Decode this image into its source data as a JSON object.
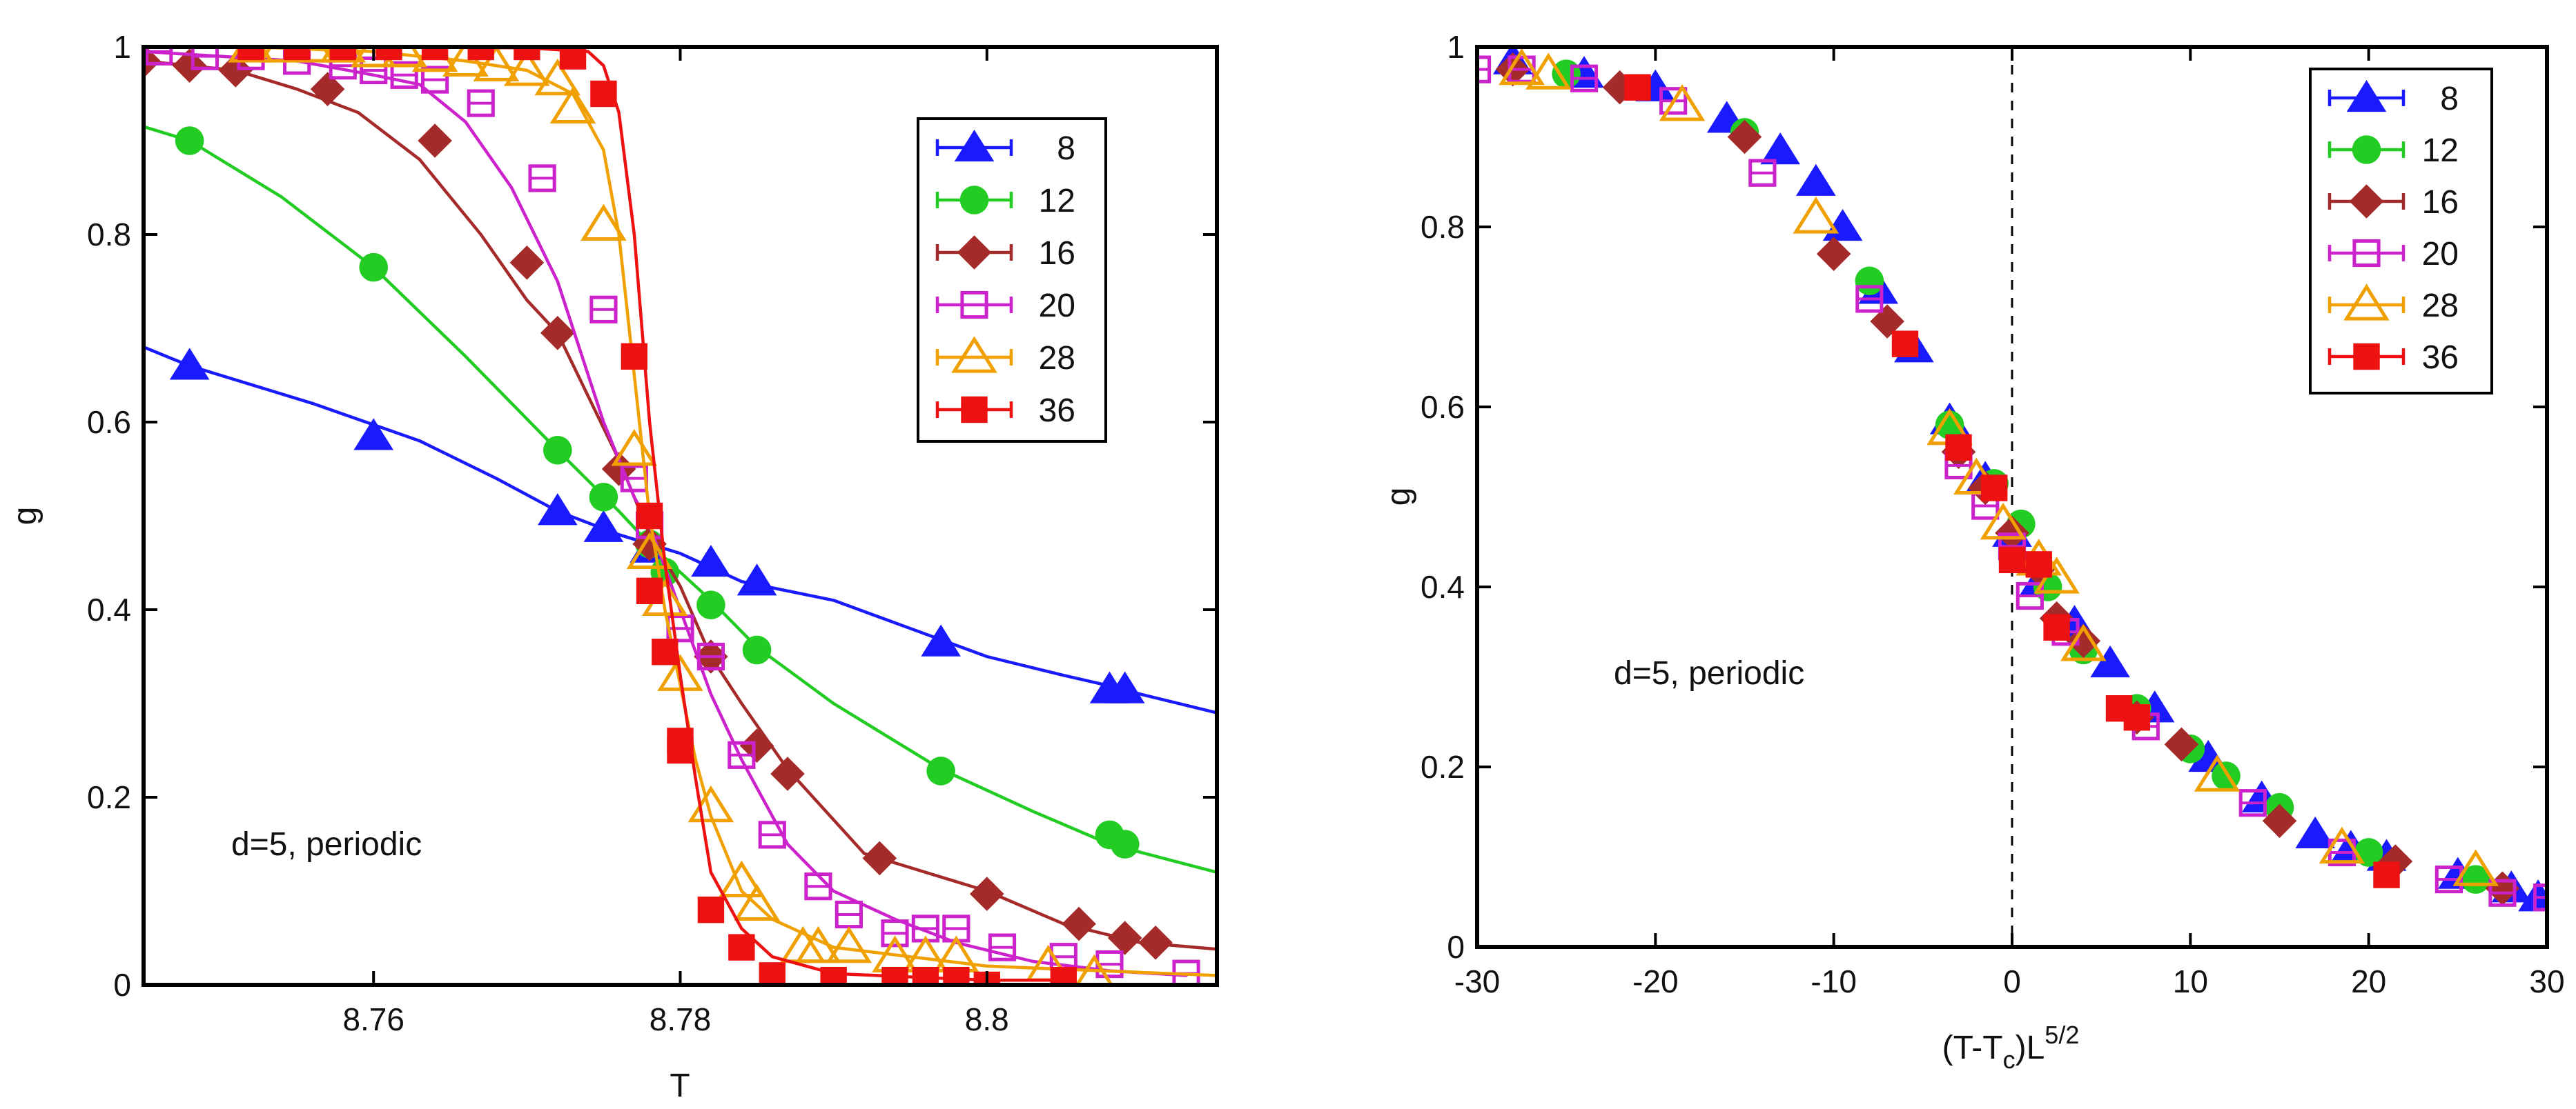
{
  "chart_data": [
    {
      "type": "line",
      "title": "",
      "xlabel": "T",
      "ylabel": "g",
      "xlim": [
        8.745,
        8.815
      ],
      "ylim": [
        0,
        1
      ],
      "xticks": [
        "8.76",
        "8.78",
        "8.8"
      ],
      "xtick_values": [
        8.76,
        8.78,
        8.8
      ],
      "yticks": [
        "0",
        "0.2",
        "0.4",
        "0.6",
        "0.8",
        "1"
      ],
      "ytick_values": [
        0,
        0.2,
        0.4,
        0.6,
        0.8,
        1
      ],
      "legend_position": "top-right",
      "annotation": "d=5, periodic",
      "grid": false,
      "series": [
        {
          "name": "8",
          "marker": "triangle",
          "color": "#1a1aff",
          "x": [
            8.745,
            8.748,
            8.756,
            8.763,
            8.768,
            8.772,
            8.776,
            8.78,
            8.784,
            8.79,
            8.795,
            8.8,
            8.805,
            8.809,
            8.81,
            8.815
          ],
          "y": [
            0.68,
            0.66,
            0.62,
            0.58,
            0.54,
            0.505,
            0.48,
            0.46,
            0.43,
            0.41,
            0.38,
            0.35,
            0.33,
            0.315,
            0.31,
            0.29
          ],
          "marker_x": [
            8.748,
            8.76,
            8.772,
            8.775,
            8.778,
            8.782,
            8.785,
            8.797,
            8.808,
            8.809
          ],
          "marker_y": [
            0.66,
            0.585,
            0.505,
            0.487,
            0.465,
            0.45,
            0.43,
            0.365,
            0.315,
            0.315
          ]
        },
        {
          "name": "12",
          "marker": "circle",
          "color": "#22cc22",
          "x": [
            8.745,
            8.748,
            8.754,
            8.76,
            8.766,
            8.772,
            8.776,
            8.778,
            8.78,
            8.782,
            8.785,
            8.79,
            8.797,
            8.803,
            8.808,
            8.815
          ],
          "y": [
            0.915,
            0.9,
            0.84,
            0.765,
            0.67,
            0.57,
            0.505,
            0.47,
            0.44,
            0.41,
            0.36,
            0.3,
            0.23,
            0.185,
            0.15,
            0.12
          ],
          "marker_x": [
            8.748,
            8.76,
            8.772,
            8.775,
            8.778,
            8.779,
            8.782,
            8.785,
            8.797,
            8.808,
            8.809
          ],
          "marker_y": [
            0.9,
            0.765,
            0.57,
            0.52,
            0.47,
            0.44,
            0.405,
            0.357,
            0.228,
            0.16,
            0.15
          ]
        },
        {
          "name": "16",
          "marker": "diamond",
          "color": "#a52a2a",
          "x": [
            8.745,
            8.748,
            8.751,
            8.755,
            8.759,
            8.763,
            8.767,
            8.77,
            8.772,
            8.776,
            8.778,
            8.78,
            8.782,
            8.784,
            8.787,
            8.792,
            8.8,
            8.805,
            8.81,
            8.815
          ],
          "y": [
            0.985,
            0.98,
            0.975,
            0.955,
            0.93,
            0.88,
            0.8,
            0.73,
            0.695,
            0.56,
            0.48,
            0.425,
            0.35,
            0.3,
            0.23,
            0.14,
            0.1,
            0.065,
            0.045,
            0.038
          ],
          "marker_x": [
            8.745,
            8.748,
            8.751,
            8.757,
            8.764,
            8.77,
            8.772,
            8.776,
            8.778,
            8.782,
            8.785,
            8.787,
            8.793,
            8.8,
            8.806,
            8.809,
            8.811
          ],
          "marker_y": [
            0.985,
            0.98,
            0.975,
            0.955,
            0.9,
            0.77,
            0.695,
            0.55,
            0.47,
            0.35,
            0.255,
            0.225,
            0.135,
            0.097,
            0.065,
            0.05,
            0.045
          ]
        },
        {
          "name": "20",
          "marker": "open-square",
          "color": "#cc22cc",
          "x": [
            8.745,
            8.75,
            8.755,
            8.76,
            8.763,
            8.766,
            8.769,
            8.772,
            8.775,
            8.777,
            8.778,
            8.78,
            8.782,
            8.784,
            8.787,
            8.79,
            8.794,
            8.798,
            8.803,
            8.808,
            8.813
          ],
          "y": [
            0.995,
            0.99,
            0.985,
            0.97,
            0.96,
            0.92,
            0.85,
            0.75,
            0.6,
            0.52,
            0.49,
            0.4,
            0.31,
            0.24,
            0.15,
            0.1,
            0.07,
            0.045,
            0.025,
            0.015,
            0.01
          ],
          "marker_x": [
            8.746,
            8.749,
            8.752,
            8.755,
            8.758,
            8.76,
            8.762,
            8.764,
            8.767,
            8.771,
            8.775,
            8.777,
            8.778,
            8.78,
            8.782,
            8.784,
            8.786,
            8.789,
            8.791,
            8.794,
            8.796,
            8.798,
            8.801,
            8.805,
            8.808,
            8.813
          ],
          "marker_y": [
            0.995,
            0.99,
            0.99,
            0.985,
            0.98,
            0.975,
            0.97,
            0.965,
            0.94,
            0.86,
            0.72,
            0.54,
            0.49,
            0.38,
            0.35,
            0.245,
            0.16,
            0.105,
            0.075,
            0.055,
            0.06,
            0.06,
            0.04,
            0.03,
            0.022,
            0.012
          ]
        },
        {
          "name": "28",
          "marker": "open-triangle",
          "color": "#f0a000",
          "x": [
            8.752,
            8.76,
            8.766,
            8.77,
            8.773,
            8.775,
            8.776,
            8.777,
            8.778,
            8.779,
            8.78,
            8.781,
            8.782,
            8.784,
            8.786,
            8.79,
            8.8,
            8.815
          ],
          "y": [
            1.0,
            0.995,
            0.985,
            0.975,
            0.95,
            0.89,
            0.8,
            0.65,
            0.5,
            0.4,
            0.32,
            0.24,
            0.18,
            0.1,
            0.07,
            0.04,
            0.02,
            0.01
          ],
          "marker_x": [
            8.752,
            8.754,
            8.756,
            8.758,
            8.76,
            8.762,
            8.764,
            8.766,
            8.768,
            8.77,
            8.772,
            8.773,
            8.775,
            8.777,
            8.778,
            8.779,
            8.78,
            8.782,
            8.784,
            8.785,
            8.788,
            8.789,
            8.791,
            8.794,
            8.796,
            8.798,
            8.804,
            8.807
          ],
          "marker_y": [
            1.0,
            1.0,
            1.0,
            1.0,
            0.995,
            0.995,
            0.99,
            0.985,
            0.98,
            0.975,
            0.965,
            0.935,
            0.81,
            0.57,
            0.46,
            0.41,
            0.33,
            0.19,
            0.11,
            0.085,
            0.04,
            0.04,
            0.04,
            0.03,
            0.03,
            0.03,
            0.02,
            0.01
          ]
        },
        {
          "name": "36",
          "marker": "square",
          "color": "#ee1111",
          "x": [
            8.752,
            8.76,
            8.77,
            8.774,
            8.775,
            8.776,
            8.777,
            8.778,
            8.779,
            8.78,
            8.781,
            8.782,
            8.784,
            8.786,
            8.79,
            8.8,
            8.805
          ],
          "y": [
            1.0,
            1.0,
            0.999,
            0.995,
            0.98,
            0.93,
            0.8,
            0.6,
            0.45,
            0.33,
            0.22,
            0.12,
            0.06,
            0.03,
            0.012,
            0.005,
            0.005
          ],
          "marker_x": [
            8.752,
            8.755,
            8.758,
            8.761,
            8.764,
            8.767,
            8.77,
            8.773,
            8.775,
            8.777,
            8.778,
            8.778,
            8.779,
            8.78,
            8.78,
            8.782,
            8.784,
            8.786,
            8.79,
            8.794,
            8.796,
            8.798,
            8.8,
            8.805
          ],
          "marker_y": [
            1.0,
            1.0,
            1.0,
            1.0,
            1.0,
            1.0,
            1.0,
            0.99,
            0.95,
            0.67,
            0.5,
            0.42,
            0.355,
            0.26,
            0.25,
            0.08,
            0.04,
            0.01,
            0.005,
            0.005,
            0.005,
            0.005,
            0.0,
            0.005
          ]
        }
      ]
    },
    {
      "type": "scatter",
      "title": "",
      "xlabel": "(T-T",
      "xlabel_sub": "c",
      "xlabel_tail": ")L",
      "xlabel_sup": "5/2",
      "ylabel": "g",
      "xlim": [
        -30,
        30
      ],
      "ylim": [
        0,
        1
      ],
      "xticks": [
        "-30",
        "-20",
        "-10",
        "0",
        "10",
        "20",
        "30"
      ],
      "xtick_values": [
        -30,
        -20,
        -10,
        0,
        10,
        20,
        30
      ],
      "yticks": [
        "0",
        "0.2",
        "0.4",
        "0.6",
        "0.8",
        "1"
      ],
      "ytick_values": [
        0,
        0.2,
        0.4,
        0.6,
        0.8,
        1
      ],
      "vline_x": 0,
      "legend_position": "top-right",
      "annotation": "d=5, periodic",
      "grid": false,
      "series": [
        {
          "name": "8",
          "marker": "triangle",
          "color": "#1a1aff",
          "x": [
            -28,
            -24,
            -20,
            -16,
            -13,
            -11,
            -9.5,
            -7.5,
            -5.5,
            -3.5,
            -1.5,
            0,
            1.5,
            3.5,
            5.5,
            8,
            11,
            14,
            17,
            19,
            21,
            25,
            28,
            29.5
          ],
          "y": [
            0.985,
            0.97,
            0.955,
            0.92,
            0.885,
            0.85,
            0.8,
            0.73,
            0.665,
            0.585,
            0.52,
            0.46,
            0.405,
            0.36,
            0.315,
            0.265,
            0.21,
            0.165,
            0.125,
            0.11,
            0.1,
            0.08,
            0.065,
            0.055
          ]
        },
        {
          "name": "12",
          "marker": "circle",
          "color": "#22cc22",
          "x": [
            -25,
            -15,
            -8,
            -3.5,
            -1,
            0.5,
            2,
            4,
            7,
            10,
            12,
            15,
            20,
            26
          ],
          "y": [
            0.97,
            0.905,
            0.74,
            0.58,
            0.515,
            0.47,
            0.4,
            0.33,
            0.265,
            0.22,
            0.19,
            0.155,
            0.105,
            0.075
          ]
        },
        {
          "name": "16",
          "marker": "diamond",
          "color": "#a52a2a",
          "x": [
            -28,
            -22,
            -15,
            -10,
            -7,
            -3,
            -1.5,
            0,
            1.5,
            2.5,
            4,
            7,
            9.5,
            15,
            21.5,
            27.5
          ],
          "y": [
            0.975,
            0.955,
            0.9,
            0.77,
            0.695,
            0.55,
            0.51,
            0.46,
            0.42,
            0.365,
            0.34,
            0.255,
            0.225,
            0.14,
            0.095,
            0.065
          ]
        },
        {
          "name": "20",
          "marker": "open-square",
          "color": "#cc22cc",
          "x": [
            -30,
            -27.5,
            -24,
            -19,
            -14,
            -8,
            -3,
            -1.5,
            0,
            1,
            3,
            7.5,
            13.5,
            18.5,
            24.5,
            27.5,
            30
          ],
          "y": [
            0.975,
            0.975,
            0.965,
            0.94,
            0.86,
            0.72,
            0.535,
            0.49,
            0.445,
            0.39,
            0.35,
            0.245,
            0.16,
            0.105,
            0.075,
            0.06,
            0.055
          ]
        },
        {
          "name": "28",
          "marker": "open-triangle",
          "color": "#f0a000",
          "x": [
            -27.5,
            -26,
            -18.5,
            -11,
            -3.5,
            -2,
            -0.5,
            1.5,
            2.5,
            4,
            11.5,
            18.5,
            26
          ],
          "y": [
            0.975,
            0.97,
            0.935,
            0.81,
            0.575,
            0.52,
            0.47,
            0.43,
            0.41,
            0.335,
            0.19,
            0.11,
            0.085
          ]
        },
        {
          "name": "36",
          "marker": "square",
          "color": "#ee1111",
          "x": [
            -21,
            -6,
            -3,
            -1,
            0,
            1.5,
            2.5,
            6,
            7,
            21
          ],
          "y": [
            0.955,
            0.67,
            0.555,
            0.51,
            0.43,
            0.425,
            0.355,
            0.265,
            0.255,
            0.08
          ]
        }
      ]
    }
  ]
}
